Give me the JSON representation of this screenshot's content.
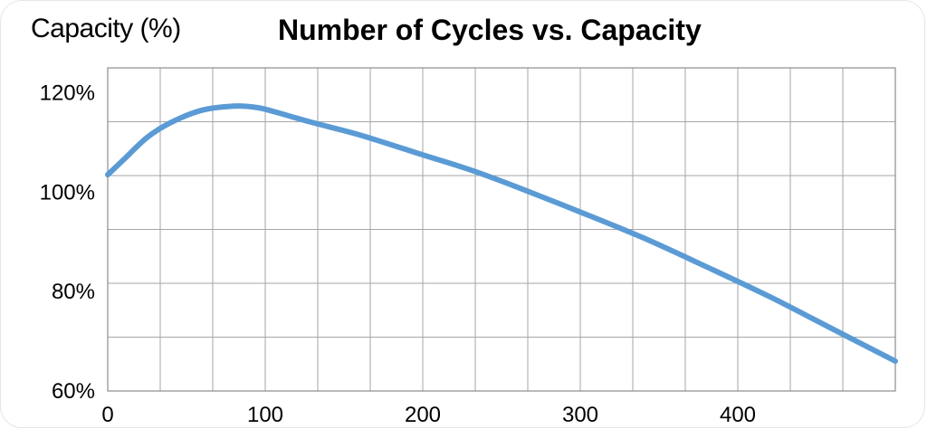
{
  "chart_data": {
    "type": "line",
    "title": "Number of Cycles vs. Capacity",
    "xlabel": "",
    "ylabel": "Capacity (%)",
    "xlim": [
      0,
      500
    ],
    "ylim": [
      60,
      125
    ],
    "grid": true,
    "x_ticks": [
      0,
      100,
      200,
      300,
      400
    ],
    "x_tick_labels": [
      "0",
      "100",
      "200",
      "300",
      "400"
    ],
    "y_ticks": [
      60,
      80,
      100,
      120
    ],
    "y_tick_labels": [
      "60%",
      "80%",
      "100%",
      "120%"
    ],
    "series": [
      {
        "color": "#5b9bd5",
        "x": [
          0,
          10,
          25,
          40,
          60,
          80,
          95,
          110,
          130,
          160,
          200,
          230,
          260,
          300,
          340,
          380,
          420,
          460,
          500
        ],
        "y": [
          103.5,
          106.5,
          111.0,
          114.0,
          116.5,
          117.3,
          117.0,
          115.8,
          114.0,
          111.5,
          107.5,
          104.5,
          101.0,
          96.0,
          90.8,
          85.0,
          79.0,
          72.5,
          66.0
        ]
      }
    ]
  }
}
